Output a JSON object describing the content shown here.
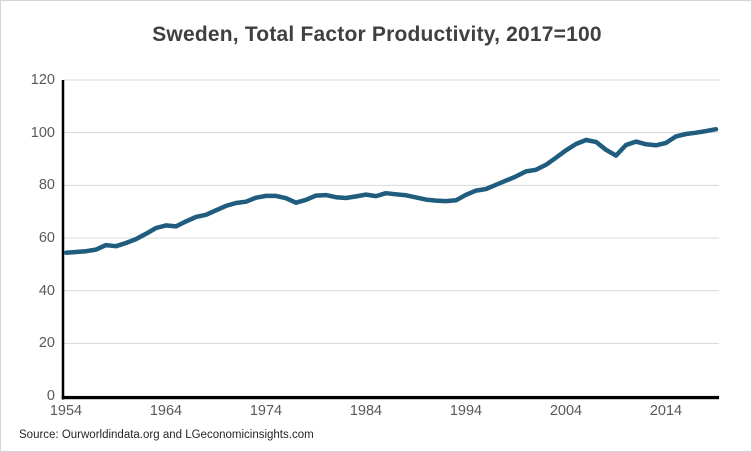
{
  "title": "Sweden, Total Factor Productivity, 2017=100",
  "source_note": "Source: Ourworldindata.org and LGeconomicinsights.com",
  "colors": {
    "line": "#1f5c7e",
    "grid": "#d9d9d9",
    "axis": "#000000",
    "tick_label": "#595959",
    "title": "#404040",
    "source": "#262626"
  },
  "chart_data": {
    "type": "line",
    "title": "Sweden, Total Factor Productivity, 2017=100",
    "xlabel": "",
    "ylabel": "",
    "ylim": [
      0,
      120
    ],
    "yticks": [
      0,
      20,
      40,
      60,
      80,
      100,
      120
    ],
    "xticks": [
      1954,
      1964,
      1974,
      1984,
      1994,
      2004,
      2014
    ],
    "grid": true,
    "legend": false,
    "x": [
      1954,
      1955,
      1956,
      1957,
      1958,
      1959,
      1960,
      1961,
      1962,
      1963,
      1964,
      1965,
      1966,
      1967,
      1968,
      1969,
      1970,
      1971,
      1972,
      1973,
      1974,
      1975,
      1976,
      1977,
      1978,
      1979,
      1980,
      1981,
      1982,
      1983,
      1984,
      1985,
      1986,
      1987,
      1988,
      1989,
      1990,
      1991,
      1992,
      1993,
      1994,
      1995,
      1996,
      1997,
      1998,
      1999,
      2000,
      2001,
      2002,
      2003,
      2004,
      2005,
      2006,
      2007,
      2008,
      2009,
      2010,
      2011,
      2012,
      2013,
      2014,
      2015,
      2016,
      2017,
      2018,
      2019
    ],
    "series": [
      {
        "name": "Total Factor Productivity (2017=100)",
        "values": [
          54.4,
          54.7,
          55.0,
          55.6,
          57.3,
          56.9,
          58.1,
          59.6,
          61.6,
          63.8,
          64.8,
          64.4,
          66.3,
          68.0,
          68.8,
          70.5,
          72.2,
          73.3,
          73.8,
          75.3,
          76.0,
          76.0,
          75.1,
          73.4,
          74.5,
          76.1,
          76.3,
          75.5,
          75.2,
          75.8,
          76.5,
          75.9,
          77.0,
          76.6,
          76.2,
          75.4,
          74.6,
          74.2,
          74.0,
          74.3,
          76.4,
          78.0,
          78.6,
          80.2,
          81.8,
          83.4,
          85.3,
          85.9,
          87.8,
          90.5,
          93.3,
          95.7,
          97.2,
          96.5,
          93.5,
          91.3,
          95.3,
          96.6,
          95.6,
          95.2,
          96.1,
          98.6,
          99.5,
          100.0,
          100.6,
          101.3
        ]
      }
    ]
  }
}
